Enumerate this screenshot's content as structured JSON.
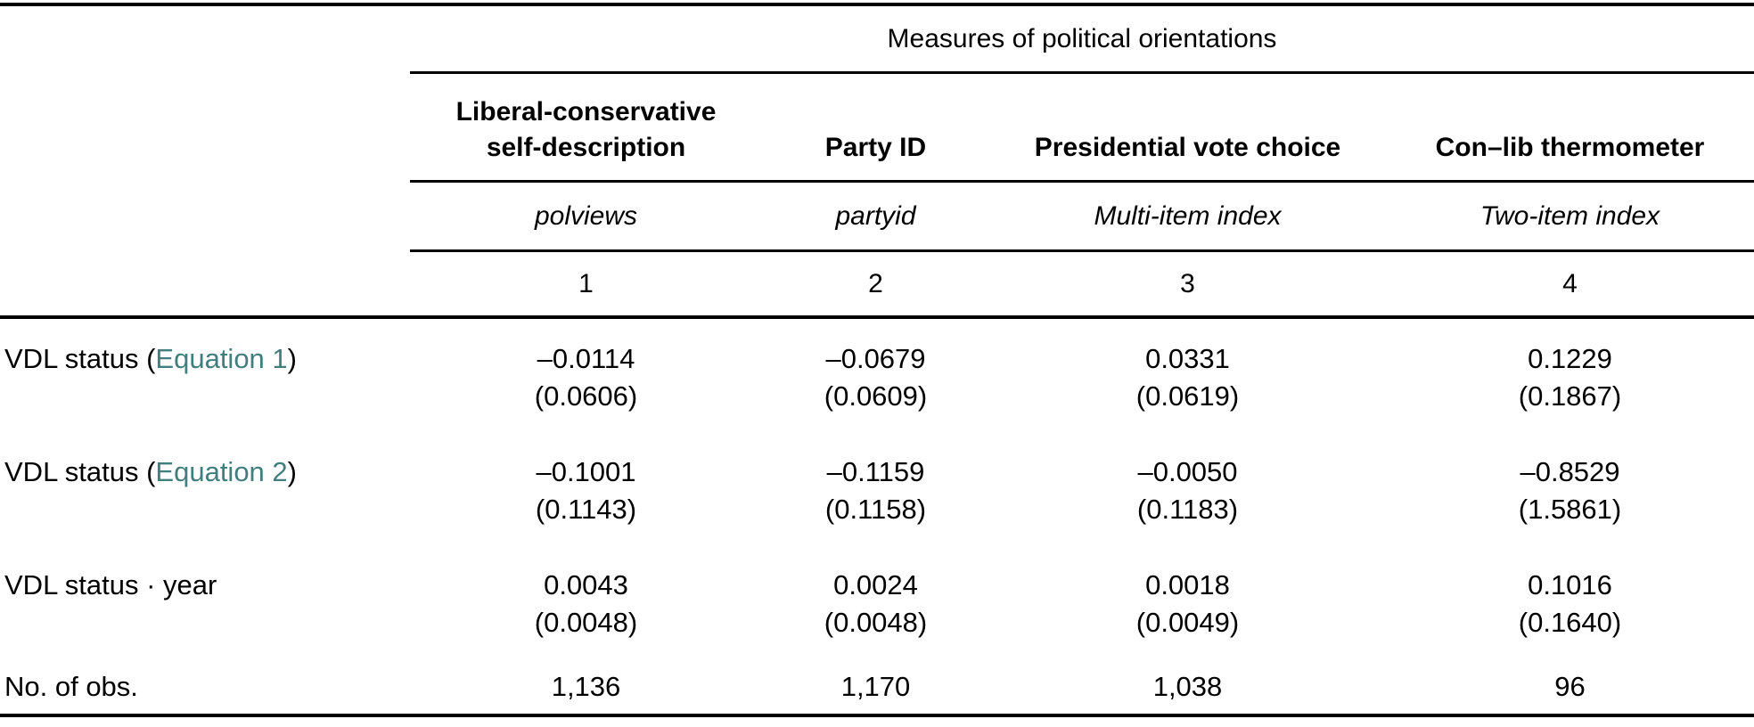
{
  "colors": {
    "link": "#417e7e",
    "text": "#000000",
    "rule": "#000000",
    "background": "#ffffff"
  },
  "table": {
    "group_header": "Measures of political orientations",
    "columns": [
      {
        "header_lines": [
          "Liberal-conservative",
          "self-description"
        ],
        "variable": "polviews",
        "number": "1"
      },
      {
        "header_lines": [
          "Party ID"
        ],
        "variable": "partyid",
        "number": "2"
      },
      {
        "header_lines": [
          "Presidential vote choice"
        ],
        "variable": "Multi-item index",
        "number": "3"
      },
      {
        "header_lines": [
          "Con–lib thermometer"
        ],
        "variable": "Two-item index",
        "number": "4"
      }
    ],
    "rows": [
      {
        "label_prefix": "VDL status (",
        "label_link": "Equation 1",
        "label_suffix": ")",
        "values": [
          "–0.0114",
          "–0.0679",
          "0.0331",
          "0.1229"
        ],
        "ses": [
          "(0.0606)",
          "(0.0609)",
          "(0.0619)",
          "(0.1867)"
        ]
      },
      {
        "label_prefix": "VDL status (",
        "label_link": "Equation 2",
        "label_suffix": ")",
        "values": [
          "–0.1001",
          "–0.1159",
          "–0.0050",
          "–0.8529"
        ],
        "ses": [
          "(0.1143)",
          "(0.1158)",
          "(0.1183)",
          "(1.5861)"
        ]
      },
      {
        "label": "VDL status · year",
        "values": [
          "0.0043",
          "0.0024",
          "0.0018",
          "0.1016"
        ],
        "ses": [
          "(0.0048)",
          "(0.0048)",
          "(0.0049)",
          "(0.1640)"
        ]
      },
      {
        "label": "No. of obs.",
        "values": [
          "1,136",
          "1,170",
          "1,038",
          "96"
        ]
      }
    ]
  }
}
